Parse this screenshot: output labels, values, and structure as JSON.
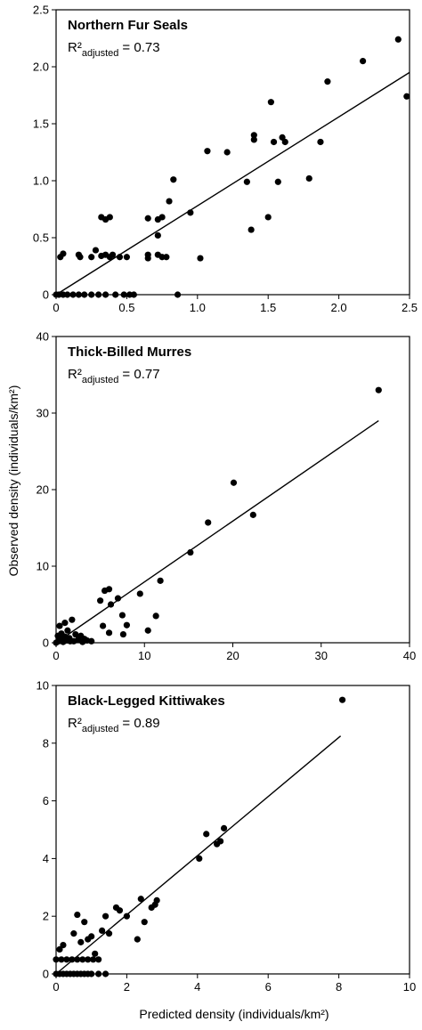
{
  "figure": {
    "ylabel": "Observed density (individuals/km²)",
    "xlabel": "Predicted density (individuals/km²)"
  },
  "chart_data": [
    {
      "type": "scatter",
      "title": "Northern Fur Seals",
      "r2_text": "R²",
      "r2_subscript": "adjusted",
      "r2_value": "= 0.73",
      "xlim": [
        0,
        2.5
      ],
      "ylim": [
        0,
        2.5
      ],
      "xticks": [
        "0",
        "0.5",
        "1.0",
        "1.5",
        "2.0",
        "2.5"
      ],
      "yticks": [
        "0",
        "0.5",
        "1.0",
        "1.5",
        "2.0",
        "2.5"
      ],
      "fit_line": [
        [
          0,
          0
        ],
        [
          2.5,
          1.95
        ]
      ],
      "points": [
        [
          0.0,
          0
        ],
        [
          0.02,
          0
        ],
        [
          0.05,
          0
        ],
        [
          0.08,
          0
        ],
        [
          0.12,
          0
        ],
        [
          0.16,
          0
        ],
        [
          0.2,
          0
        ],
        [
          0.25,
          0
        ],
        [
          0.3,
          0
        ],
        [
          0.35,
          0
        ],
        [
          0.42,
          0
        ],
        [
          0.48,
          0
        ],
        [
          0.52,
          0
        ],
        [
          0.55,
          0
        ],
        [
          0.86,
          0
        ],
        [
          0.03,
          0.33
        ],
        [
          0.05,
          0.36
        ],
        [
          0.17,
          0.33
        ],
        [
          0.16,
          0.35
        ],
        [
          0.25,
          0.33
        ],
        [
          0.28,
          0.39
        ],
        [
          0.32,
          0.34
        ],
        [
          0.35,
          0.35
        ],
        [
          0.38,
          0.33
        ],
        [
          0.4,
          0.35
        ],
        [
          0.45,
          0.33
        ],
        [
          0.5,
          0.33
        ],
        [
          0.65,
          0.32
        ],
        [
          0.65,
          0.35
        ],
        [
          0.72,
          0.35
        ],
        [
          0.75,
          0.33
        ],
        [
          0.78,
          0.33
        ],
        [
          1.02,
          0.32
        ],
        [
          0.32,
          0.68
        ],
        [
          0.35,
          0.66
        ],
        [
          0.38,
          0.68
        ],
        [
          0.65,
          0.67
        ],
        [
          0.72,
          0.66
        ],
        [
          0.75,
          0.68
        ],
        [
          0.72,
          0.52
        ],
        [
          0.95,
          0.72
        ],
        [
          0.8,
          0.82
        ],
        [
          0.83,
          1.01
        ],
        [
          1.07,
          1.26
        ],
        [
          1.21,
          1.25
        ],
        [
          1.35,
          0.99
        ],
        [
          1.38,
          0.57
        ],
        [
          1.4,
          1.36
        ],
        [
          1.4,
          1.4
        ],
        [
          1.5,
          0.68
        ],
        [
          1.52,
          1.69
        ],
        [
          1.54,
          1.34
        ],
        [
          1.57,
          0.99
        ],
        [
          1.6,
          1.38
        ],
        [
          1.62,
          1.34
        ],
        [
          1.79,
          1.02
        ],
        [
          1.87,
          1.34
        ],
        [
          1.92,
          1.87
        ],
        [
          2.17,
          2.05
        ],
        [
          2.42,
          2.24
        ],
        [
          2.48,
          1.74
        ]
      ]
    },
    {
      "type": "scatter",
      "title": "Thick-Billed Murres",
      "r2_text": "R²",
      "r2_subscript": "adjusted",
      "r2_value": "= 0.77",
      "xlim": [
        0,
        40
      ],
      "ylim": [
        0,
        40
      ],
      "xticks": [
        "0",
        "10",
        "20",
        "30",
        "40"
      ],
      "yticks": [
        "0",
        "10",
        "20",
        "30",
        "40"
      ],
      "fit_line": [
        [
          0,
          0
        ],
        [
          36.5,
          29
        ]
      ],
      "points": [
        [
          0,
          0
        ],
        [
          0.3,
          0.2
        ],
        [
          0.5,
          0.5
        ],
        [
          0.8,
          0.1
        ],
        [
          1,
          0.8
        ],
        [
          1.2,
          0.3
        ],
        [
          1.5,
          0.6
        ],
        [
          2,
          0.2
        ],
        [
          2.5,
          0.4
        ],
        [
          3,
          0.1
        ],
        [
          3.5,
          0.3
        ],
        [
          4,
          0.2
        ],
        [
          0.6,
          1.2
        ],
        [
          1.3,
          1.6
        ],
        [
          0.4,
          2.2
        ],
        [
          1,
          2.6
        ],
        [
          1.8,
          3
        ],
        [
          2.2,
          1.1
        ],
        [
          2.8,
          0.9
        ],
        [
          3.2,
          0.5
        ],
        [
          0.2,
          0.9
        ],
        [
          1.6,
          0.2
        ],
        [
          5,
          5.5
        ],
        [
          5.5,
          6.8
        ],
        [
          6,
          7
        ],
        [
          6.2,
          5
        ],
        [
          7,
          5.8
        ],
        [
          7.5,
          3.6
        ],
        [
          8,
          2.3
        ],
        [
          5.3,
          2.2
        ],
        [
          6,
          1.3
        ],
        [
          7.6,
          1.1
        ],
        [
          9.5,
          6.4
        ],
        [
          10.4,
          1.6
        ],
        [
          11.3,
          3.5
        ],
        [
          11.8,
          8.1
        ],
        [
          15.2,
          11.8
        ],
        [
          17.2,
          15.7
        ],
        [
          20.1,
          20.9
        ],
        [
          22.3,
          16.7
        ],
        [
          36.5,
          33
        ]
      ]
    },
    {
      "type": "scatter",
      "title": "Black-Legged Kittiwakes",
      "r2_text": "R²",
      "r2_subscript": "adjusted",
      "r2_value": "= 0.89",
      "xlim": [
        0,
        10
      ],
      "ylim": [
        0,
        10
      ],
      "xticks": [
        "0",
        "2",
        "4",
        "6",
        "8",
        "10"
      ],
      "yticks": [
        "0",
        "2",
        "4",
        "6",
        "8",
        "10"
      ],
      "fit_line": [
        [
          0,
          0
        ],
        [
          8.05,
          8.25
        ]
      ],
      "points": [
        [
          0,
          0
        ],
        [
          0.1,
          0
        ],
        [
          0.2,
          0
        ],
        [
          0.3,
          0
        ],
        [
          0.4,
          0
        ],
        [
          0.5,
          0
        ],
        [
          0.6,
          0
        ],
        [
          0.7,
          0
        ],
        [
          0.8,
          0
        ],
        [
          0.9,
          0
        ],
        [
          1.0,
          0
        ],
        [
          1.2,
          0
        ],
        [
          1.4,
          0
        ],
        [
          0,
          0.5
        ],
        [
          0.15,
          0.5
        ],
        [
          0.3,
          0.5
        ],
        [
          0.45,
          0.5
        ],
        [
          0.6,
          0.5
        ],
        [
          0.75,
          0.5
        ],
        [
          0.9,
          0.5
        ],
        [
          1.05,
          0.5
        ],
        [
          1.2,
          0.5
        ],
        [
          0.1,
          0.85
        ],
        [
          0.2,
          1.0
        ],
        [
          0.5,
          1.4
        ],
        [
          0.6,
          2.05
        ],
        [
          0.7,
          1.1
        ],
        [
          0.8,
          1.8
        ],
        [
          0.9,
          1.2
        ],
        [
          1.0,
          1.3
        ],
        [
          1.1,
          0.7
        ],
        [
          1.3,
          1.5
        ],
        [
          1.4,
          2.0
        ],
        [
          1.5,
          1.4
        ],
        [
          1.7,
          2.3
        ],
        [
          1.8,
          2.2
        ],
        [
          2.0,
          2.0
        ],
        [
          2.3,
          1.2
        ],
        [
          2.4,
          2.6
        ],
        [
          2.5,
          1.8
        ],
        [
          2.7,
          2.3
        ],
        [
          2.8,
          2.4
        ],
        [
          2.85,
          2.55
        ],
        [
          4.05,
          4.0
        ],
        [
          4.25,
          4.85
        ],
        [
          4.55,
          4.5
        ],
        [
          4.65,
          4.6
        ],
        [
          4.75,
          5.05
        ],
        [
          8.1,
          9.5
        ]
      ]
    }
  ]
}
